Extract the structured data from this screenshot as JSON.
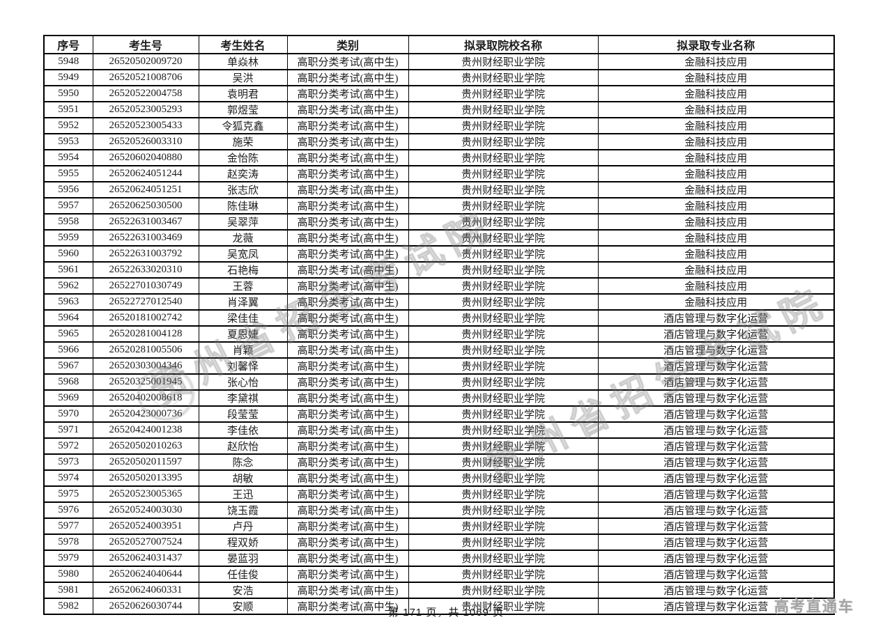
{
  "colors": {
    "background": "#ffffff",
    "table_border": "#000000",
    "text": "#1c1c1c",
    "watermark_gray": "#808080",
    "brand_gray": "#a2a2a2"
  },
  "watermark": {
    "text": "贵州省招生考试院",
    "stamp": "circular-seal"
  },
  "footer": {
    "page_info": "第 171 页，共 1069 页",
    "brand": "高考直通车"
  },
  "table": {
    "columns": [
      "序号",
      "考生号",
      "考生姓名",
      "类别",
      "拟录取院校名称",
      "拟录取专业名称"
    ],
    "column_keys": [
      "index",
      "candidate-no",
      "name",
      "category",
      "college",
      "major"
    ],
    "rows": [
      [
        "5948",
        "26520502009720",
        "单焱林",
        "高职分类考试(高中生)",
        "贵州财经职业学院",
        "金融科技应用"
      ],
      [
        "5949",
        "26520521008706",
        "吴洪",
        "高职分类考试(高中生)",
        "贵州财经职业学院",
        "金融科技应用"
      ],
      [
        "5950",
        "26520522004758",
        "袁明君",
        "高职分类考试(高中生)",
        "贵州财经职业学院",
        "金融科技应用"
      ],
      [
        "5951",
        "26520523005293",
        "郭煜莹",
        "高职分类考试(高中生)",
        "贵州财经职业学院",
        "金融科技应用"
      ],
      [
        "5952",
        "26520523005433",
        "令狐克鑫",
        "高职分类考试(高中生)",
        "贵州财经职业学院",
        "金融科技应用"
      ],
      [
        "5953",
        "26520526003310",
        "施荣",
        "高职分类考试(高中生)",
        "贵州财经职业学院",
        "金融科技应用"
      ],
      [
        "5954",
        "26520602040880",
        "金怡陈",
        "高职分类考试(高中生)",
        "贵州财经职业学院",
        "金融科技应用"
      ],
      [
        "5955",
        "26520624051244",
        "赵奕涛",
        "高职分类考试(高中生)",
        "贵州财经职业学院",
        "金融科技应用"
      ],
      [
        "5956",
        "26520624051251",
        "张志欣",
        "高职分类考试(高中生)",
        "贵州财经职业学院",
        "金融科技应用"
      ],
      [
        "5957",
        "26520625030500",
        "陈佳琳",
        "高职分类考试(高中生)",
        "贵州财经职业学院",
        "金融科技应用"
      ],
      [
        "5958",
        "26522631003467",
        "吴翠萍",
        "高职分类考试(高中生)",
        "贵州财经职业学院",
        "金融科技应用"
      ],
      [
        "5959",
        "26522631003469",
        "龙薇",
        "高职分类考试(高中生)",
        "贵州财经职业学院",
        "金融科技应用"
      ],
      [
        "5960",
        "26522631003792",
        "吴宽凤",
        "高职分类考试(高中生)",
        "贵州财经职业学院",
        "金融科技应用"
      ],
      [
        "5961",
        "26522633020310",
        "石艳梅",
        "高职分类考试(高中生)",
        "贵州财经职业学院",
        "金融科技应用"
      ],
      [
        "5962",
        "26522701030749",
        "王蓉",
        "高职分类考试(高中生)",
        "贵州财经职业学院",
        "金融科技应用"
      ],
      [
        "5963",
        "26522727012540",
        "肖泽翼",
        "高职分类考试(高中生)",
        "贵州财经职业学院",
        "金融科技应用"
      ],
      [
        "5964",
        "26520181002742",
        "梁佳佳",
        "高职分类考试(高中生)",
        "贵州财经职业学院",
        "酒店管理与数字化运营"
      ],
      [
        "5965",
        "26520281004128",
        "夏恩婕",
        "高职分类考试(高中生)",
        "贵州财经职业学院",
        "酒店管理与数字化运营"
      ],
      [
        "5966",
        "26520281005506",
        "肖颖",
        "高职分类考试(高中生)",
        "贵州财经职业学院",
        "酒店管理与数字化运营"
      ],
      [
        "5967",
        "26520303004346",
        "刘馨怿",
        "高职分类考试(高中生)",
        "贵州财经职业学院",
        "酒店管理与数字化运营"
      ],
      [
        "5968",
        "26520325001945",
        "张心怡",
        "高职分类考试(高中生)",
        "贵州财经职业学院",
        "酒店管理与数字化运营"
      ],
      [
        "5969",
        "26520402008618",
        "李黛祺",
        "高职分类考试(高中生)",
        "贵州财经职业学院",
        "酒店管理与数字化运营"
      ],
      [
        "5970",
        "26520423000736",
        "段莹莹",
        "高职分类考试(高中生)",
        "贵州财经职业学院",
        "酒店管理与数字化运营"
      ],
      [
        "5971",
        "26520424001238",
        "李佳依",
        "高职分类考试(高中生)",
        "贵州财经职业学院",
        "酒店管理与数字化运营"
      ],
      [
        "5972",
        "26520502010263",
        "赵欣怡",
        "高职分类考试(高中生)",
        "贵州财经职业学院",
        "酒店管理与数字化运营"
      ],
      [
        "5973",
        "26520502011597",
        "陈念",
        "高职分类考试(高中生)",
        "贵州财经职业学院",
        "酒店管理与数字化运营"
      ],
      [
        "5974",
        "26520502013395",
        "胡敏",
        "高职分类考试(高中生)",
        "贵州财经职业学院",
        "酒店管理与数字化运营"
      ],
      [
        "5975",
        "26520523005365",
        "王迅",
        "高职分类考试(高中生)",
        "贵州财经职业学院",
        "酒店管理与数字化运营"
      ],
      [
        "5976",
        "26520524003030",
        "饶玉霞",
        "高职分类考试(高中生)",
        "贵州财经职业学院",
        "酒店管理与数字化运营"
      ],
      [
        "5977",
        "26520524003951",
        "卢丹",
        "高职分类考试(高中生)",
        "贵州财经职业学院",
        "酒店管理与数字化运营"
      ],
      [
        "5978",
        "26520527007524",
        "程双娇",
        "高职分类考试(高中生)",
        "贵州财经职业学院",
        "酒店管理与数字化运营"
      ],
      [
        "5979",
        "26520624031437",
        "晏蓝羽",
        "高职分类考试(高中生)",
        "贵州财经职业学院",
        "酒店管理与数字化运营"
      ],
      [
        "5980",
        "26520624040644",
        "任佳俊",
        "高职分类考试(高中生)",
        "贵州财经职业学院",
        "酒店管理与数字化运营"
      ],
      [
        "5981",
        "26520624060331",
        "安浩",
        "高职分类考试(高中生)",
        "贵州财经职业学院",
        "酒店管理与数字化运营"
      ],
      [
        "5982",
        "26520626030744",
        "安顺",
        "高职分类考试(高中生)",
        "贵州财经职业学院",
        "酒店管理与数字化运营"
      ]
    ]
  }
}
